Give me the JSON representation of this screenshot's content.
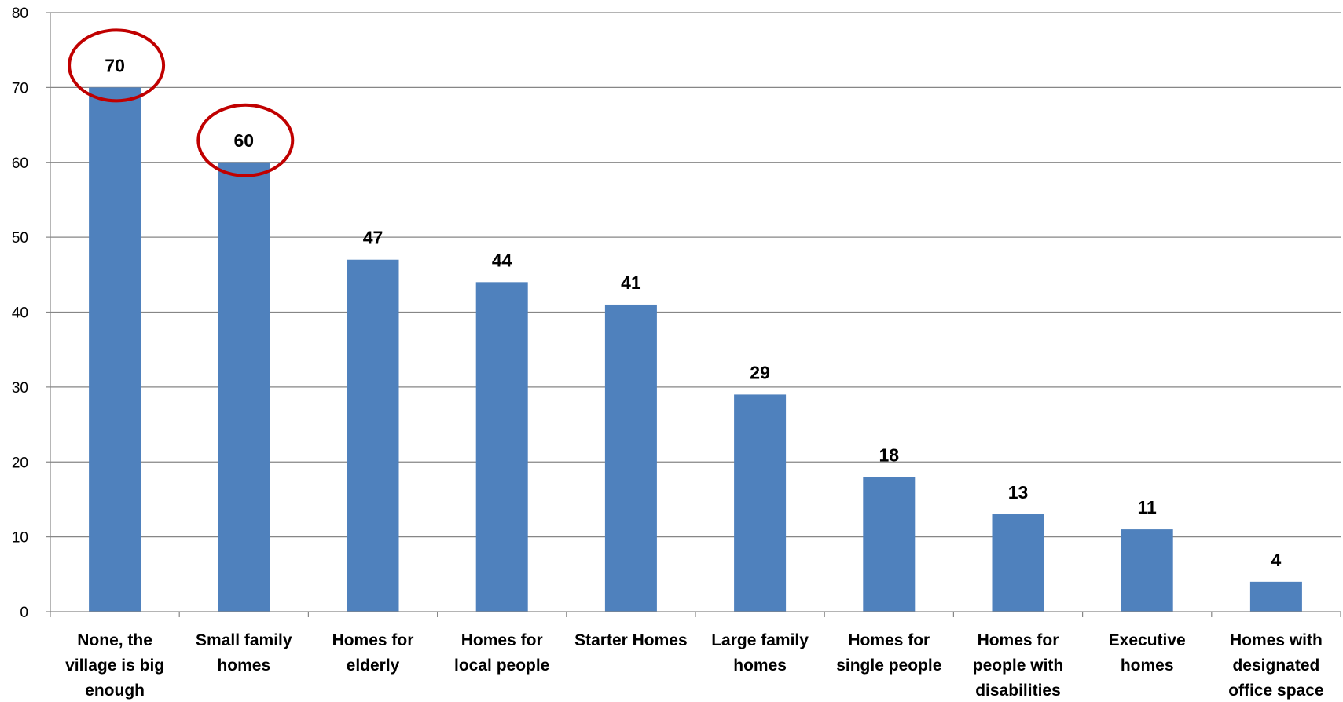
{
  "chart_data": {
    "type": "bar",
    "title": "",
    "xlabel": "",
    "ylabel": "",
    "categories": [
      [
        "None, the",
        "village is big",
        "enough"
      ],
      [
        "Small family",
        "homes"
      ],
      [
        "Homes for",
        "elderly"
      ],
      [
        "Homes for",
        "local people"
      ],
      [
        "Starter Homes"
      ],
      [
        "Large family",
        "homes"
      ],
      [
        "Homes for",
        "single people"
      ],
      [
        "Homes for",
        "people with",
        "disabilities"
      ],
      [
        "Executive",
        "homes"
      ],
      [
        "Homes with",
        "designated",
        "office space"
      ]
    ],
    "values": [
      70,
      60,
      47,
      44,
      41,
      29,
      18,
      13,
      11,
      4
    ],
    "ylim": [
      0,
      80
    ],
    "yticks": [
      0,
      10,
      20,
      30,
      40,
      50,
      60,
      70,
      80
    ],
    "grid": true,
    "legend": "none",
    "highlighted": [
      0,
      1
    ],
    "colors": {
      "bar": "#4F81BD",
      "highlight": "#C00000",
      "grid": "#868686",
      "axis": "#868686"
    }
  }
}
